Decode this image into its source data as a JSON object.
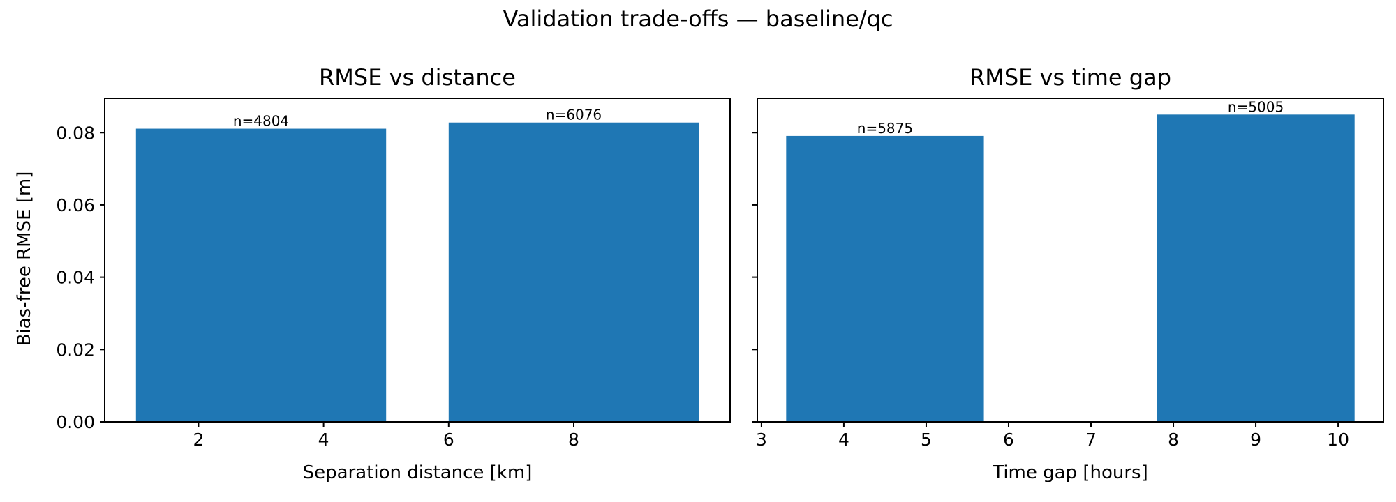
{
  "suptitle": "Validation trade-offs — baseline/qc",
  "ylabel": "Bias-free RMSE [m]",
  "bar_color": "#1f77b4",
  "chart_data": [
    {
      "type": "bar",
      "title": "RMSE vs distance",
      "xlabel": "Separation distance [km]",
      "ylabel": "Bias-free RMSE [m]",
      "xlim": [
        0.5,
        10.5
      ],
      "ylim": [
        0,
        0.0895
      ],
      "xticks": [
        2,
        4,
        6,
        8
      ],
      "yticks": [
        0.0,
        0.02,
        0.04,
        0.06,
        0.08
      ],
      "bars": [
        {
          "x_start": 1,
          "x_end": 5,
          "value": 0.0811,
          "label": "n=4804"
        },
        {
          "x_start": 6,
          "x_end": 10,
          "value": 0.0828,
          "label": "n=6076"
        }
      ]
    },
    {
      "type": "bar",
      "title": "RMSE vs time gap",
      "xlabel": "Time gap [hours]",
      "ylim": [
        0,
        0.0895
      ],
      "xlim": [
        2.95,
        10.55
      ],
      "xticks": [
        3,
        4,
        5,
        6,
        7,
        8,
        9,
        10
      ],
      "yticks": [
        0.0,
        0.02,
        0.04,
        0.06,
        0.08
      ],
      "bars": [
        {
          "x_start": 3.3,
          "x_end": 5.7,
          "value": 0.0791,
          "label": "n=5875"
        },
        {
          "x_start": 7.8,
          "x_end": 10.2,
          "value": 0.085,
          "label": "n=5005"
        }
      ]
    }
  ]
}
